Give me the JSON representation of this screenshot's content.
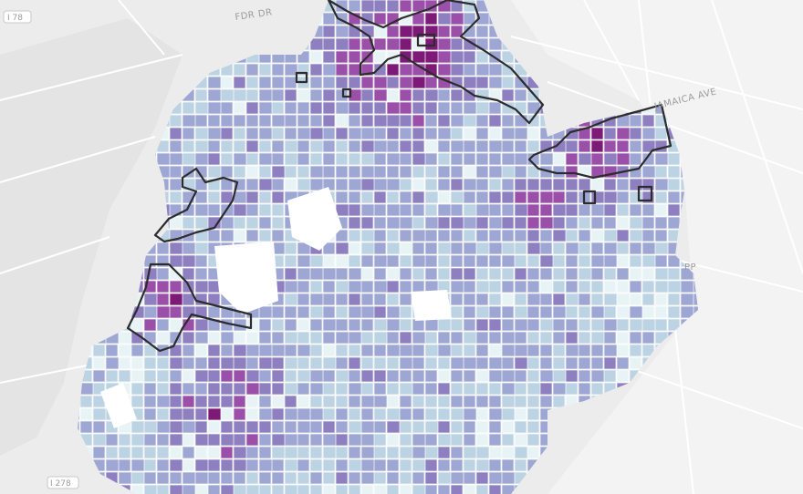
{
  "map": {
    "type": "choropleth",
    "labels": {
      "fdr": "FDR DR",
      "jamaica": "JAMAICA AVE",
      "i78": "I 78",
      "i278": "I 278",
      "parkway_fragment": "PP"
    },
    "colors": {
      "background": "#ececec",
      "water": "#e4e4e4",
      "land": "#f3f3f3",
      "road": "#ffffff",
      "class_0": "#e8f3f6",
      "class_1": "#bcd3e4",
      "class_2": "#9ea6d3",
      "class_3": "#8d7fc0",
      "class_4": "#9a4fa8",
      "class_5": "#7d1a78",
      "outline": "#2c2c2c"
    },
    "highlighted_areas": [
      "northern-area",
      "northeast-area",
      "western-waterfront-area",
      "southwest-area"
    ]
  }
}
